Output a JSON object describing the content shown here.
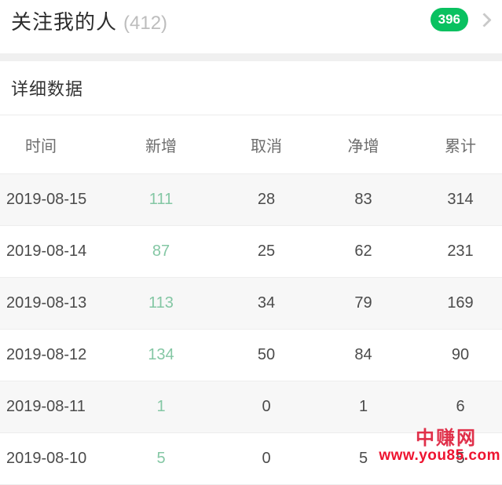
{
  "header": {
    "title": "关注我的人",
    "count": "(412)",
    "badge": "396"
  },
  "section": {
    "title": "详细数据"
  },
  "table": {
    "columns": [
      "时间",
      "新增",
      "取消",
      "净增",
      "累计"
    ],
    "rows": [
      {
        "date": "2019-08-15",
        "new": "111",
        "cancel": "28",
        "net": "83",
        "total": "314"
      },
      {
        "date": "2019-08-14",
        "new": "87",
        "cancel": "25",
        "net": "62",
        "total": "231"
      },
      {
        "date": "2019-08-13",
        "new": "113",
        "cancel": "34",
        "net": "79",
        "total": "169"
      },
      {
        "date": "2019-08-12",
        "new": "134",
        "cancel": "50",
        "net": "84",
        "total": "90"
      },
      {
        "date": "2019-08-11",
        "new": "1",
        "cancel": "0",
        "net": "1",
        "total": "6"
      },
      {
        "date": "2019-08-10",
        "new": "5",
        "cancel": "0",
        "net": "5",
        "total": "5"
      }
    ]
  },
  "watermark": {
    "line1": "中赚网",
    "line2": "www.you85.com"
  },
  "colors": {
    "badge_green": "#09c160",
    "new_value_green": "#84c7a4",
    "stripe_gray": "#f7f7f7",
    "watermark_red": "#ee1430"
  }
}
